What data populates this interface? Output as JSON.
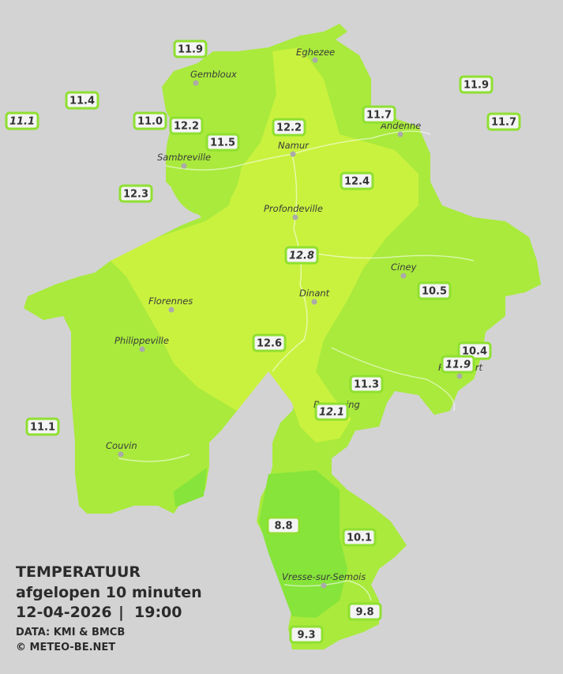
{
  "map": {
    "title": "TEMPERATUUR",
    "subtitle": "afgelopen 10 minuten",
    "date": "12-04-2026",
    "separator": "|",
    "time": "19:00",
    "source": "DATA: KMI & BMCB",
    "credit": "© METEO-BE.NET",
    "towns": [
      "Eghezee",
      "Gembloux",
      "Andenne",
      "Namur",
      "Sambreville",
      "Profondeville",
      "Ciney",
      "Dinant",
      "Florennes",
      "Philippeville",
      "Beauraing",
      "Rochefort",
      "Couvin",
      "Vresse-sur-Semois"
    ],
    "stations": [
      {
        "reading": "11.9"
      },
      {
        "reading": "11.4"
      },
      {
        "reading": "11.1",
        "italic": true
      },
      {
        "reading": "11.0"
      },
      {
        "reading": "12.2"
      },
      {
        "reading": "11.5"
      },
      {
        "reading": "12.2"
      },
      {
        "reading": "11.7"
      },
      {
        "reading": "11.9"
      },
      {
        "reading": "11.7"
      },
      {
        "reading": "12.3"
      },
      {
        "reading": "12.4"
      },
      {
        "reading": "12.8",
        "italic": true
      },
      {
        "reading": "10.5"
      },
      {
        "reading": "12.6"
      },
      {
        "reading": "10.4"
      },
      {
        "reading": "11.9",
        "italic": true
      },
      {
        "reading": "11.3"
      },
      {
        "reading": "12.1",
        "italic": true
      },
      {
        "reading": "11.1"
      },
      {
        "reading": "8.8"
      },
      {
        "reading": "10.1"
      },
      {
        "reading": "9.8"
      },
      {
        "reading": "9.3"
      }
    ]
  }
}
